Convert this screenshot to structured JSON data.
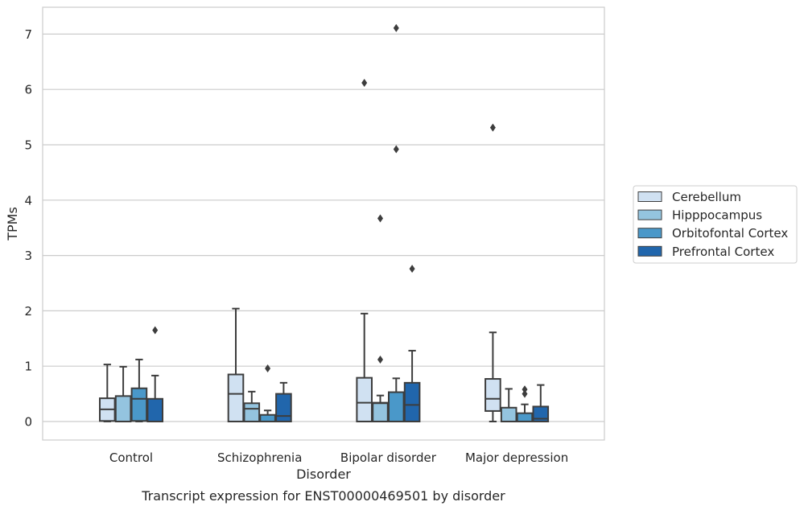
{
  "chart_data": {
    "type": "box",
    "title": "",
    "caption": "Transcript expression for ENST00000469501 by disorder",
    "xlabel": "Disorder",
    "ylabel": "TPMs",
    "ylim": [
      -0.35,
      7.5
    ],
    "yticks": [
      0,
      1,
      2,
      3,
      4,
      5,
      6,
      7
    ],
    "grid": "horizontal",
    "legend_position": "right",
    "categories": [
      "Control",
      "Schizophrenia",
      "Bipolar disorder",
      "Major depression"
    ],
    "series": [
      {
        "name": "Cerebellum",
        "color": "#d0e1f2",
        "boxes": [
          {
            "min": 0,
            "q1": 0.01,
            "median": 0.22,
            "q3": 0.42,
            "max": 1.03,
            "outliers": []
          },
          {
            "min": 0,
            "q1": 0.0,
            "median": 0.5,
            "q3": 0.85,
            "max": 2.04,
            "outliers": []
          },
          {
            "min": 0,
            "q1": 0.0,
            "median": 0.34,
            "q3": 0.79,
            "max": 1.95,
            "outliers": [
              6.12
            ]
          },
          {
            "min": 0,
            "q1": 0.19,
            "median": 0.41,
            "q3": 0.77,
            "max": 1.61,
            "outliers": [
              5.31
            ]
          }
        ]
      },
      {
        "name": "Hipppocampus",
        "color": "#94c4df",
        "boxes": [
          {
            "min": 0,
            "q1": 0.0,
            "median": 0.0,
            "q3": 0.46,
            "max": 0.99,
            "outliers": []
          },
          {
            "min": 0,
            "q1": 0.0,
            "median": 0.23,
            "q3": 0.33,
            "max": 0.54,
            "outliers": []
          },
          {
            "min": 0,
            "q1": 0.0,
            "median": 0.33,
            "q3": 0.34,
            "max": 0.47,
            "outliers": [
              1.12,
              3.67
            ]
          },
          {
            "min": 0,
            "q1": 0.0,
            "median": 0.0,
            "q3": 0.25,
            "max": 0.59,
            "outliers": []
          }
        ]
      },
      {
        "name": "Orbitofontal Cortex",
        "color": "#4a98c9",
        "boxes": [
          {
            "min": 0,
            "q1": 0.01,
            "median": 0.41,
            "q3": 0.6,
            "max": 1.12,
            "outliers": []
          },
          {
            "min": 0,
            "q1": 0.0,
            "median": 0.0,
            "q3": 0.12,
            "max": 0.2,
            "outliers": [
              0.96
            ]
          },
          {
            "min": 0,
            "q1": 0.0,
            "median": 0.0,
            "q3": 0.53,
            "max": 0.78,
            "outliers": [
              4.92,
              7.11
            ]
          },
          {
            "min": 0,
            "q1": 0.0,
            "median": 0.0,
            "q3": 0.15,
            "max": 0.31,
            "outliers": [
              0.5,
              0.58
            ]
          }
        ]
      },
      {
        "name": "Prefrontal Cortex",
        "color": "#2166ac",
        "boxes": [
          {
            "min": 0,
            "q1": 0.0,
            "median": 0.0,
            "q3": 0.41,
            "max": 0.83,
            "outliers": [
              1.65
            ]
          },
          {
            "min": 0,
            "q1": 0.0,
            "median": 0.1,
            "q3": 0.5,
            "max": 0.7,
            "outliers": []
          },
          {
            "min": 0,
            "q1": 0.0,
            "median": 0.3,
            "q3": 0.7,
            "max": 1.28,
            "outliers": [
              2.76
            ]
          },
          {
            "min": 0,
            "q1": 0.0,
            "median": 0.05,
            "q3": 0.27,
            "max": 0.66,
            "outliers": []
          }
        ]
      }
    ]
  }
}
